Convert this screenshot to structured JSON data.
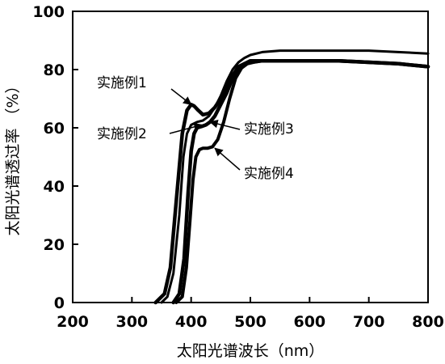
{
  "chart_data": {
    "type": "line",
    "title": "",
    "xlabel": "太阳光谱波长（nm）",
    "ylabel": "太阳光谱透过率 （%）",
    "xlim": [
      200,
      800
    ],
    "ylim": [
      0,
      100
    ],
    "xticks": [
      200,
      300,
      400,
      500,
      600,
      700,
      800
    ],
    "yticks": [
      0,
      20,
      40,
      60,
      80,
      100
    ],
    "grid": false,
    "legend": "none",
    "series": [
      {
        "name": "实施例1",
        "x": [
          340,
          355,
          365,
          375,
          385,
          393,
          400,
          405,
          412,
          420,
          430,
          440,
          450,
          460,
          470,
          480,
          490,
          500,
          520,
          550,
          600,
          650,
          700,
          750,
          800
        ],
        "y": [
          0,
          3,
          12,
          35,
          58,
          66,
          68,
          67.5,
          66,
          64.5,
          65,
          67,
          70,
          74,
          78,
          81,
          82,
          82.5,
          83,
          83,
          83,
          83,
          82.5,
          82,
          81
        ]
      },
      {
        "name": "实施例2",
        "x": [
          350,
          360,
          370,
          380,
          387,
          393,
          400,
          410,
          420,
          430,
          440,
          450,
          460,
          470,
          480,
          490,
          500,
          520,
          550,
          600,
          650,
          700,
          750,
          800
        ],
        "y": [
          0,
          2,
          10,
          30,
          50,
          58,
          61,
          62,
          62.5,
          64,
          67,
          71,
          76,
          80,
          82.5,
          84,
          85,
          86,
          86.5,
          86.5,
          86.5,
          86.5,
          86,
          85.5
        ]
      },
      {
        "name": "实施例3",
        "x": [
          370,
          380,
          388,
          395,
          400,
          405,
          410,
          418,
          425,
          432,
          440,
          450,
          460,
          470,
          480,
          490,
          500,
          520,
          550,
          600,
          650,
          700,
          750,
          800
        ],
        "y": [
          0,
          3,
          15,
          38,
          52,
          58,
          60,
          60.5,
          61,
          62,
          64,
          68,
          72,
          77,
          80,
          82,
          83,
          83,
          83,
          83,
          83,
          82.5,
          82,
          81
        ]
      },
      {
        "name": "实施例4",
        "x": [
          375,
          385,
          392,
          398,
          403,
          408,
          414,
          420,
          428,
          436,
          445,
          455,
          465,
          475,
          485,
          495,
          505,
          520,
          550,
          600,
          650,
          700,
          750,
          800
        ],
        "y": [
          0,
          2,
          12,
          28,
          42,
          50,
          52.5,
          53,
          53,
          53.5,
          56,
          62,
          70,
          77,
          80.5,
          82,
          82.5,
          83,
          83,
          83,
          83,
          82.5,
          82,
          81
        ]
      }
    ],
    "annotations": [
      {
        "text": "实施例1",
        "series": "实施例1",
        "x": 400,
        "y": 68
      },
      {
        "text": "实施例2",
        "series": "实施例2",
        "x": 418,
        "y": 61
      },
      {
        "text": "实施例3",
        "series": "实施例3",
        "x": 432,
        "y": 62
      },
      {
        "text": "实施例4",
        "series": "实施例4",
        "x": 440,
        "y": 53
      }
    ]
  }
}
